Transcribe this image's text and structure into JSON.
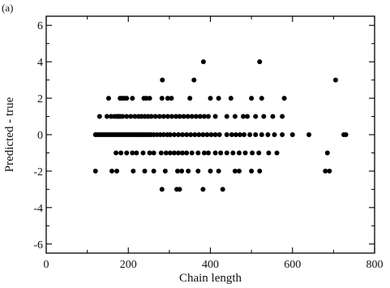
{
  "chart_data": {
    "type": "scatter",
    "panel_label": "(a)",
    "xlabel": "Chain length",
    "ylabel": "Predicted - true",
    "xlim": [
      0,
      800
    ],
    "ylim": [
      -6.5,
      6.5
    ],
    "xticks": [
      0,
      200,
      400,
      600,
      800
    ],
    "yticks": [
      -6,
      -4,
      -2,
      0,
      2,
      4,
      6
    ],
    "xtick_labels": [
      "0",
      "200",
      "400",
      "600",
      "800"
    ],
    "ytick_labels": [
      "-6",
      "-4",
      "-2",
      "0",
      "2",
      "4",
      "6"
    ],
    "grid": false,
    "marker_color": "#000000",
    "points": [
      [
        383,
        4
      ],
      [
        520,
        4
      ],
      [
        283,
        3
      ],
      [
        360,
        3
      ],
      [
        705,
        3
      ],
      [
        152,
        2
      ],
      [
        180,
        2
      ],
      [
        185,
        2
      ],
      [
        190,
        2
      ],
      [
        196,
        2
      ],
      [
        210,
        2
      ],
      [
        238,
        2
      ],
      [
        244,
        2
      ],
      [
        252,
        2
      ],
      [
        282,
        2
      ],
      [
        296,
        2
      ],
      [
        305,
        2
      ],
      [
        350,
        2
      ],
      [
        400,
        2
      ],
      [
        420,
        2
      ],
      [
        450,
        2
      ],
      [
        500,
        2
      ],
      [
        525,
        2
      ],
      [
        580,
        2
      ],
      [
        130,
        1
      ],
      [
        148,
        1
      ],
      [
        158,
        1
      ],
      [
        166,
        1
      ],
      [
        172,
        1
      ],
      [
        176,
        1
      ],
      [
        180,
        1
      ],
      [
        186,
        1
      ],
      [
        196,
        1
      ],
      [
        206,
        1
      ],
      [
        216,
        1
      ],
      [
        225,
        1
      ],
      [
        232,
        1
      ],
      [
        240,
        1
      ],
      [
        248,
        1
      ],
      [
        256,
        1
      ],
      [
        266,
        1
      ],
      [
        276,
        1
      ],
      [
        286,
        1
      ],
      [
        296,
        1
      ],
      [
        306,
        1
      ],
      [
        316,
        1
      ],
      [
        325,
        1
      ],
      [
        335,
        1
      ],
      [
        345,
        1
      ],
      [
        355,
        1
      ],
      [
        365,
        1
      ],
      [
        375,
        1
      ],
      [
        385,
        1
      ],
      [
        395,
        1
      ],
      [
        412,
        1
      ],
      [
        440,
        1
      ],
      [
        460,
        1
      ],
      [
        480,
        1
      ],
      [
        490,
        1
      ],
      [
        510,
        1
      ],
      [
        530,
        1
      ],
      [
        552,
        1
      ],
      [
        575,
        1
      ],
      [
        120,
        0
      ],
      [
        125,
        0
      ],
      [
        130,
        0
      ],
      [
        135,
        0
      ],
      [
        140,
        0
      ],
      [
        145,
        0
      ],
      [
        150,
        0
      ],
      [
        155,
        0
      ],
      [
        160,
        0
      ],
      [
        165,
        0
      ],
      [
        170,
        0
      ],
      [
        175,
        0
      ],
      [
        180,
        0
      ],
      [
        185,
        0
      ],
      [
        190,
        0
      ],
      [
        195,
        0
      ],
      [
        200,
        0
      ],
      [
        205,
        0
      ],
      [
        210,
        0
      ],
      [
        215,
        0
      ],
      [
        220,
        0
      ],
      [
        225,
        0
      ],
      [
        230,
        0
      ],
      [
        235,
        0
      ],
      [
        240,
        0
      ],
      [
        245,
        0
      ],
      [
        250,
        0
      ],
      [
        255,
        0
      ],
      [
        262,
        0
      ],
      [
        270,
        0
      ],
      [
        278,
        0
      ],
      [
        286,
        0
      ],
      [
        295,
        0
      ],
      [
        302,
        0
      ],
      [
        312,
        0
      ],
      [
        322,
        0
      ],
      [
        332,
        0
      ],
      [
        342,
        0
      ],
      [
        352,
        0
      ],
      [
        362,
        0
      ],
      [
        372,
        0
      ],
      [
        382,
        0
      ],
      [
        392,
        0
      ],
      [
        402,
        0
      ],
      [
        412,
        0
      ],
      [
        422,
        0
      ],
      [
        440,
        0
      ],
      [
        452,
        0
      ],
      [
        462,
        0
      ],
      [
        472,
        0
      ],
      [
        482,
        0
      ],
      [
        496,
        0
      ],
      [
        510,
        0
      ],
      [
        525,
        0
      ],
      [
        540,
        0
      ],
      [
        556,
        0
      ],
      [
        575,
        0
      ],
      [
        600,
        0
      ],
      [
        640,
        0
      ],
      [
        725,
        0
      ],
      [
        730,
        0
      ],
      [
        170,
        -1
      ],
      [
        182,
        -1
      ],
      [
        196,
        -1
      ],
      [
        210,
        -1
      ],
      [
        220,
        -1
      ],
      [
        236,
        -1
      ],
      [
        252,
        -1
      ],
      [
        262,
        -1
      ],
      [
        280,
        -1
      ],
      [
        292,
        -1
      ],
      [
        302,
        -1
      ],
      [
        312,
        -1
      ],
      [
        322,
        -1
      ],
      [
        332,
        -1
      ],
      [
        342,
        -1
      ],
      [
        355,
        -1
      ],
      [
        370,
        -1
      ],
      [
        385,
        -1
      ],
      [
        395,
        -1
      ],
      [
        412,
        -1
      ],
      [
        425,
        -1
      ],
      [
        440,
        -1
      ],
      [
        455,
        -1
      ],
      [
        470,
        -1
      ],
      [
        485,
        -1
      ],
      [
        502,
        -1
      ],
      [
        518,
        -1
      ],
      [
        542,
        -1
      ],
      [
        562,
        -1
      ],
      [
        685,
        -1
      ],
      [
        120,
        -2
      ],
      [
        160,
        -2
      ],
      [
        172,
        -2
      ],
      [
        212,
        -2
      ],
      [
        240,
        -2
      ],
      [
        262,
        -2
      ],
      [
        290,
        -2
      ],
      [
        320,
        -2
      ],
      [
        330,
        -2
      ],
      [
        346,
        -2
      ],
      [
        370,
        -2
      ],
      [
        400,
        -2
      ],
      [
        420,
        -2
      ],
      [
        460,
        -2
      ],
      [
        470,
        -2
      ],
      [
        500,
        -2
      ],
      [
        520,
        -2
      ],
      [
        680,
        -2
      ],
      [
        690,
        -2
      ],
      [
        282,
        -3
      ],
      [
        318,
        -3
      ],
      [
        325,
        -3
      ],
      [
        382,
        -3
      ],
      [
        430,
        -3
      ]
    ]
  }
}
